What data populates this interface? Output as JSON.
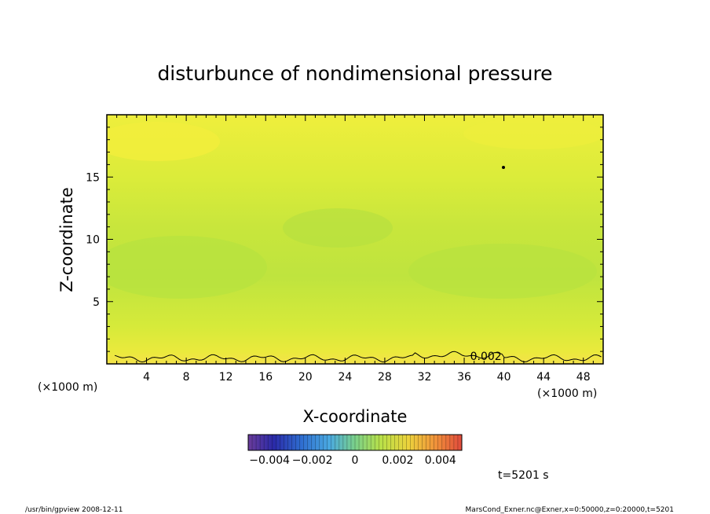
{
  "chart_data": {
    "type": "heatmap",
    "title": "disturbunce of nondimensional pressure",
    "xlabel": "X-coordinate",
    "ylabel": "Z-coordinate",
    "x_unit_left": "(×1000 m)",
    "x_unit_right": "(×1000 m)",
    "xlim": [
      0,
      50
    ],
    "ylim": [
      0,
      20
    ],
    "x_ticks": [
      4,
      8,
      12,
      16,
      20,
      24,
      28,
      32,
      36,
      40,
      44,
      48
    ],
    "y_ticks": [
      5,
      10,
      15
    ],
    "contour": {
      "level": 0.002,
      "label": "0.002"
    },
    "colorbar": {
      "min": -0.005,
      "max": 0.005,
      "tick_values": [
        -0.004,
        -0.002,
        0,
        0.002,
        0.004
      ],
      "tick_labels": [
        "−0.004",
        "−0.002",
        "0",
        "0.002",
        "0.004"
      ]
    },
    "field_samples": {
      "z": [
        0.5,
        1.5,
        3,
        5,
        8,
        11,
        14,
        17,
        19.5
      ],
      "value": [
        0.0021,
        0.0017,
        0.0014,
        0.0011,
        0.0009,
        0.001,
        0.0013,
        0.0016,
        0.0018
      ]
    },
    "grid": false
  },
  "time_label": "t=5201 s",
  "footer": {
    "left": "/usr/bin/gpview   2008-12-11",
    "right": "MarsCond_Exner.nc@Exner,x=0:50000,z=0:20000,t=5201"
  }
}
